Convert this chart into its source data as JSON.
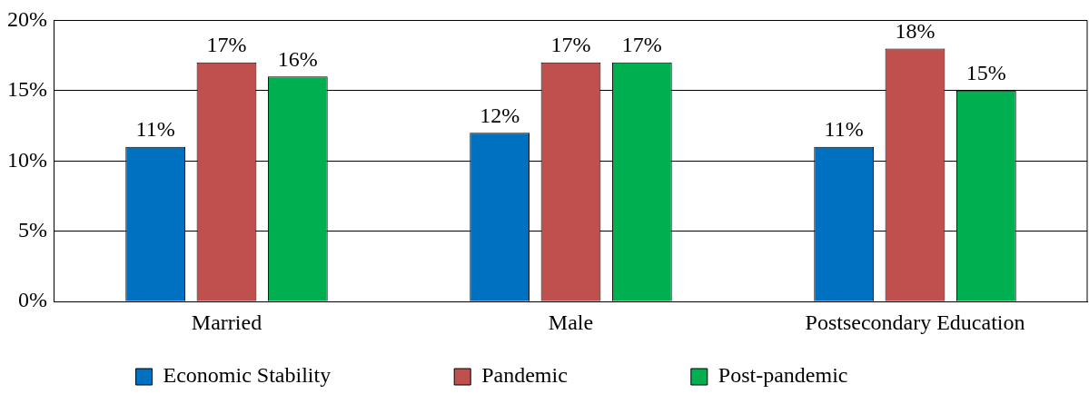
{
  "chart_data": {
    "type": "bar",
    "categories": [
      "Married",
      "Male",
      "Postsecondary Education"
    ],
    "series": [
      {
        "name": "Economic Stability",
        "color": "#0070c0",
        "values": [
          11,
          12,
          11
        ],
        "value_labels": [
          "11%",
          "12%",
          "11%"
        ]
      },
      {
        "name": "Pandemic",
        "color": "#c0504d",
        "values": [
          17,
          17,
          18
        ],
        "value_labels": [
          "17%",
          "17%",
          "18%"
        ]
      },
      {
        "name": "Post-pandemic",
        "color": "#00b050",
        "values": [
          16,
          17,
          15
        ],
        "value_labels": [
          "16%",
          "17%",
          "15%"
        ]
      }
    ],
    "ylim": [
      0,
      20
    ],
    "yticks": [
      {
        "value": 0,
        "label": "0%"
      },
      {
        "value": 5,
        "label": "5%"
      },
      {
        "value": 10,
        "label": "10%"
      },
      {
        "value": 15,
        "label": "15%"
      },
      {
        "value": 20,
        "label": "20%"
      }
    ],
    "grid": "y",
    "legend": "bottom"
  }
}
